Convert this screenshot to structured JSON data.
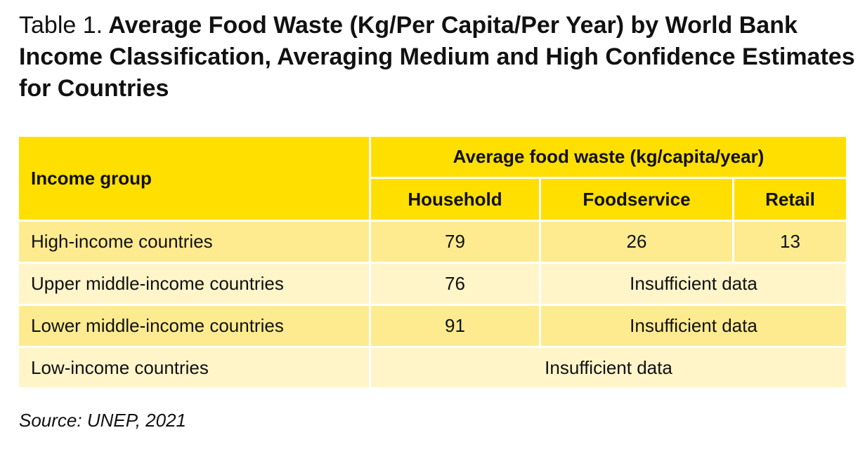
{
  "header": {
    "label": "Table 1.",
    "title": "Average Food Waste (Kg/Per Capita/Per Year) by World Bank Income Classification, Averaging Medium and High Confidence Estimates for Countries"
  },
  "table": {
    "group_header": "Income group",
    "span_header": "Average food waste (kg/capita/year)",
    "columns": [
      "Household",
      "Foodservice",
      "Retail"
    ],
    "rows": [
      [
        "High-income countries",
        79,
        26,
        13
      ],
      [
        "Upper middle-income countries",
        76,
        "Insufficient data"
      ],
      [
        "Lower middle-income countries",
        91,
        "Insufficient data"
      ],
      [
        "Low-income countries",
        "Insufficient data"
      ]
    ]
  },
  "footer": {
    "source": "Source: UNEP, 2021"
  }
}
